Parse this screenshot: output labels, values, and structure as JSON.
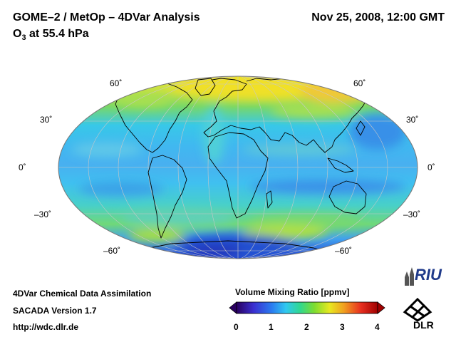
{
  "header": {
    "title": "GOME–2 / MetOp – 4DVar Analysis",
    "subtitle_species": "O",
    "subtitle_subscript": "3",
    "subtitle_level": " at 55.4 hPa",
    "datetime": "Nov 25, 2008, 12:00 GMT"
  },
  "map": {
    "projection": "Mollweide",
    "lat_labels_left": [
      "60˚",
      "30˚",
      "0˚",
      "–30˚",
      "–60˚"
    ],
    "lat_labels_right": [
      "60˚",
      "30˚",
      "0˚",
      "–30˚",
      "–60˚"
    ]
  },
  "colorbar": {
    "title": "Volume Mixing Ratio [ppmv]",
    "ticks": [
      "0",
      "1",
      "2",
      "3",
      "4"
    ],
    "min": 0,
    "max": 4,
    "colors": [
      "#2a0060",
      "#3a2fd0",
      "#2a7cf0",
      "#30c8f0",
      "#30d890",
      "#7cdc30",
      "#e8e820",
      "#f0a020",
      "#e83020",
      "#a00000"
    ]
  },
  "footer": {
    "line1": "4DVar Chemical Data Assimilation",
    "line2": "SACADA Version 1.7",
    "line3": "http://wdc.dlr.de"
  },
  "logos": {
    "riu": "RIU",
    "dlr": "DLR"
  }
}
